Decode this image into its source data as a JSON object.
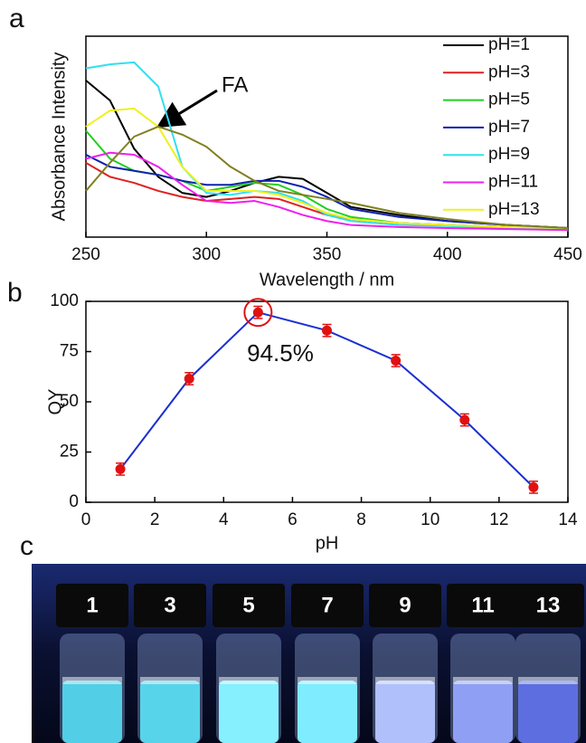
{
  "chart_data": [
    {
      "type": "line",
      "panel": "a",
      "xlabel": "Wavelength  / nm",
      "ylabel": "Absorbance Intensity",
      "x": [
        250,
        260,
        270,
        280,
        290,
        300,
        310,
        320,
        330,
        340,
        350,
        360,
        380,
        400,
        425,
        450
      ],
      "xlim": [
        250,
        450
      ],
      "xticks": [
        250,
        300,
        350,
        400,
        450
      ],
      "ylim": [
        0,
        1
      ],
      "series": [
        {
          "name": "pH=1",
          "color": "#000000",
          "values": [
            0.78,
            0.68,
            0.44,
            0.3,
            0.22,
            0.2,
            0.23,
            0.27,
            0.3,
            0.29,
            0.22,
            0.15,
            0.11,
            0.08,
            0.06,
            0.045
          ]
        },
        {
          "name": "pH=3",
          "color": "#e02020",
          "values": [
            0.37,
            0.3,
            0.27,
            0.23,
            0.2,
            0.18,
            0.19,
            0.2,
            0.19,
            0.15,
            0.11,
            0.09,
            0.07,
            0.06,
            0.05,
            0.04
          ]
        },
        {
          "name": "pH=5",
          "color": "#20d020",
          "values": [
            0.53,
            0.39,
            0.33,
            0.31,
            0.28,
            0.23,
            0.25,
            0.27,
            0.26,
            0.21,
            0.14,
            0.1,
            0.07,
            0.06,
            0.05,
            0.04
          ]
        },
        {
          "name": "pH=7",
          "color": "#1020b0",
          "values": [
            0.41,
            0.35,
            0.33,
            0.31,
            0.28,
            0.26,
            0.26,
            0.28,
            0.28,
            0.25,
            0.2,
            0.14,
            0.1,
            0.08,
            0.06,
            0.045
          ]
        },
        {
          "name": "pH=9",
          "color": "#30e0f0",
          "values": [
            0.84,
            0.86,
            0.87,
            0.75,
            0.35,
            0.22,
            0.21,
            0.23,
            0.22,
            0.18,
            0.11,
            0.08,
            0.06,
            0.055,
            0.045,
            0.04
          ]
        },
        {
          "name": "pH=11",
          "color": "#ee20ee",
          "values": [
            0.39,
            0.42,
            0.41,
            0.35,
            0.26,
            0.18,
            0.17,
            0.18,
            0.15,
            0.11,
            0.08,
            0.06,
            0.05,
            0.045,
            0.04,
            0.035
          ]
        },
        {
          "name": "pH=13",
          "color": "#f0f020",
          "values": [
            0.55,
            0.63,
            0.64,
            0.55,
            0.35,
            0.23,
            0.23,
            0.23,
            0.21,
            0.17,
            0.12,
            0.09,
            0.07,
            0.06,
            0.05,
            0.045
          ]
        },
        {
          "color": "#808020",
          "values": [
            0.23,
            0.37,
            0.5,
            0.55,
            0.51,
            0.45,
            0.35,
            0.28,
            0.23,
            0.21,
            0.19,
            0.17,
            0.12,
            0.09,
            0.06,
            0.045
          ]
        }
      ],
      "annotation": "FA"
    },
    {
      "type": "line",
      "panel": "b",
      "xlabel": "pH",
      "ylabel": "QY",
      "x": [
        1,
        3,
        5,
        7,
        9,
        11,
        13
      ],
      "values": [
        16.5,
        61.5,
        94.5,
        85.5,
        70.5,
        41,
        7.5
      ],
      "errors": [
        3,
        3,
        3,
        3,
        3,
        3,
        3
      ],
      "color": "#1a2fd0",
      "marker_color": "#e01010",
      "xlim": [
        0,
        14
      ],
      "xticks": [
        0,
        2,
        4,
        6,
        8,
        10,
        12,
        14
      ],
      "ylim": [
        0,
        100
      ],
      "yticks": [
        0,
        25,
        50,
        75,
        100
      ],
      "annotation": "94.5%"
    }
  ],
  "photo": {
    "panel": "c",
    "labels": [
      "1",
      "3",
      "5",
      "7",
      "9",
      "11",
      "13"
    ]
  }
}
